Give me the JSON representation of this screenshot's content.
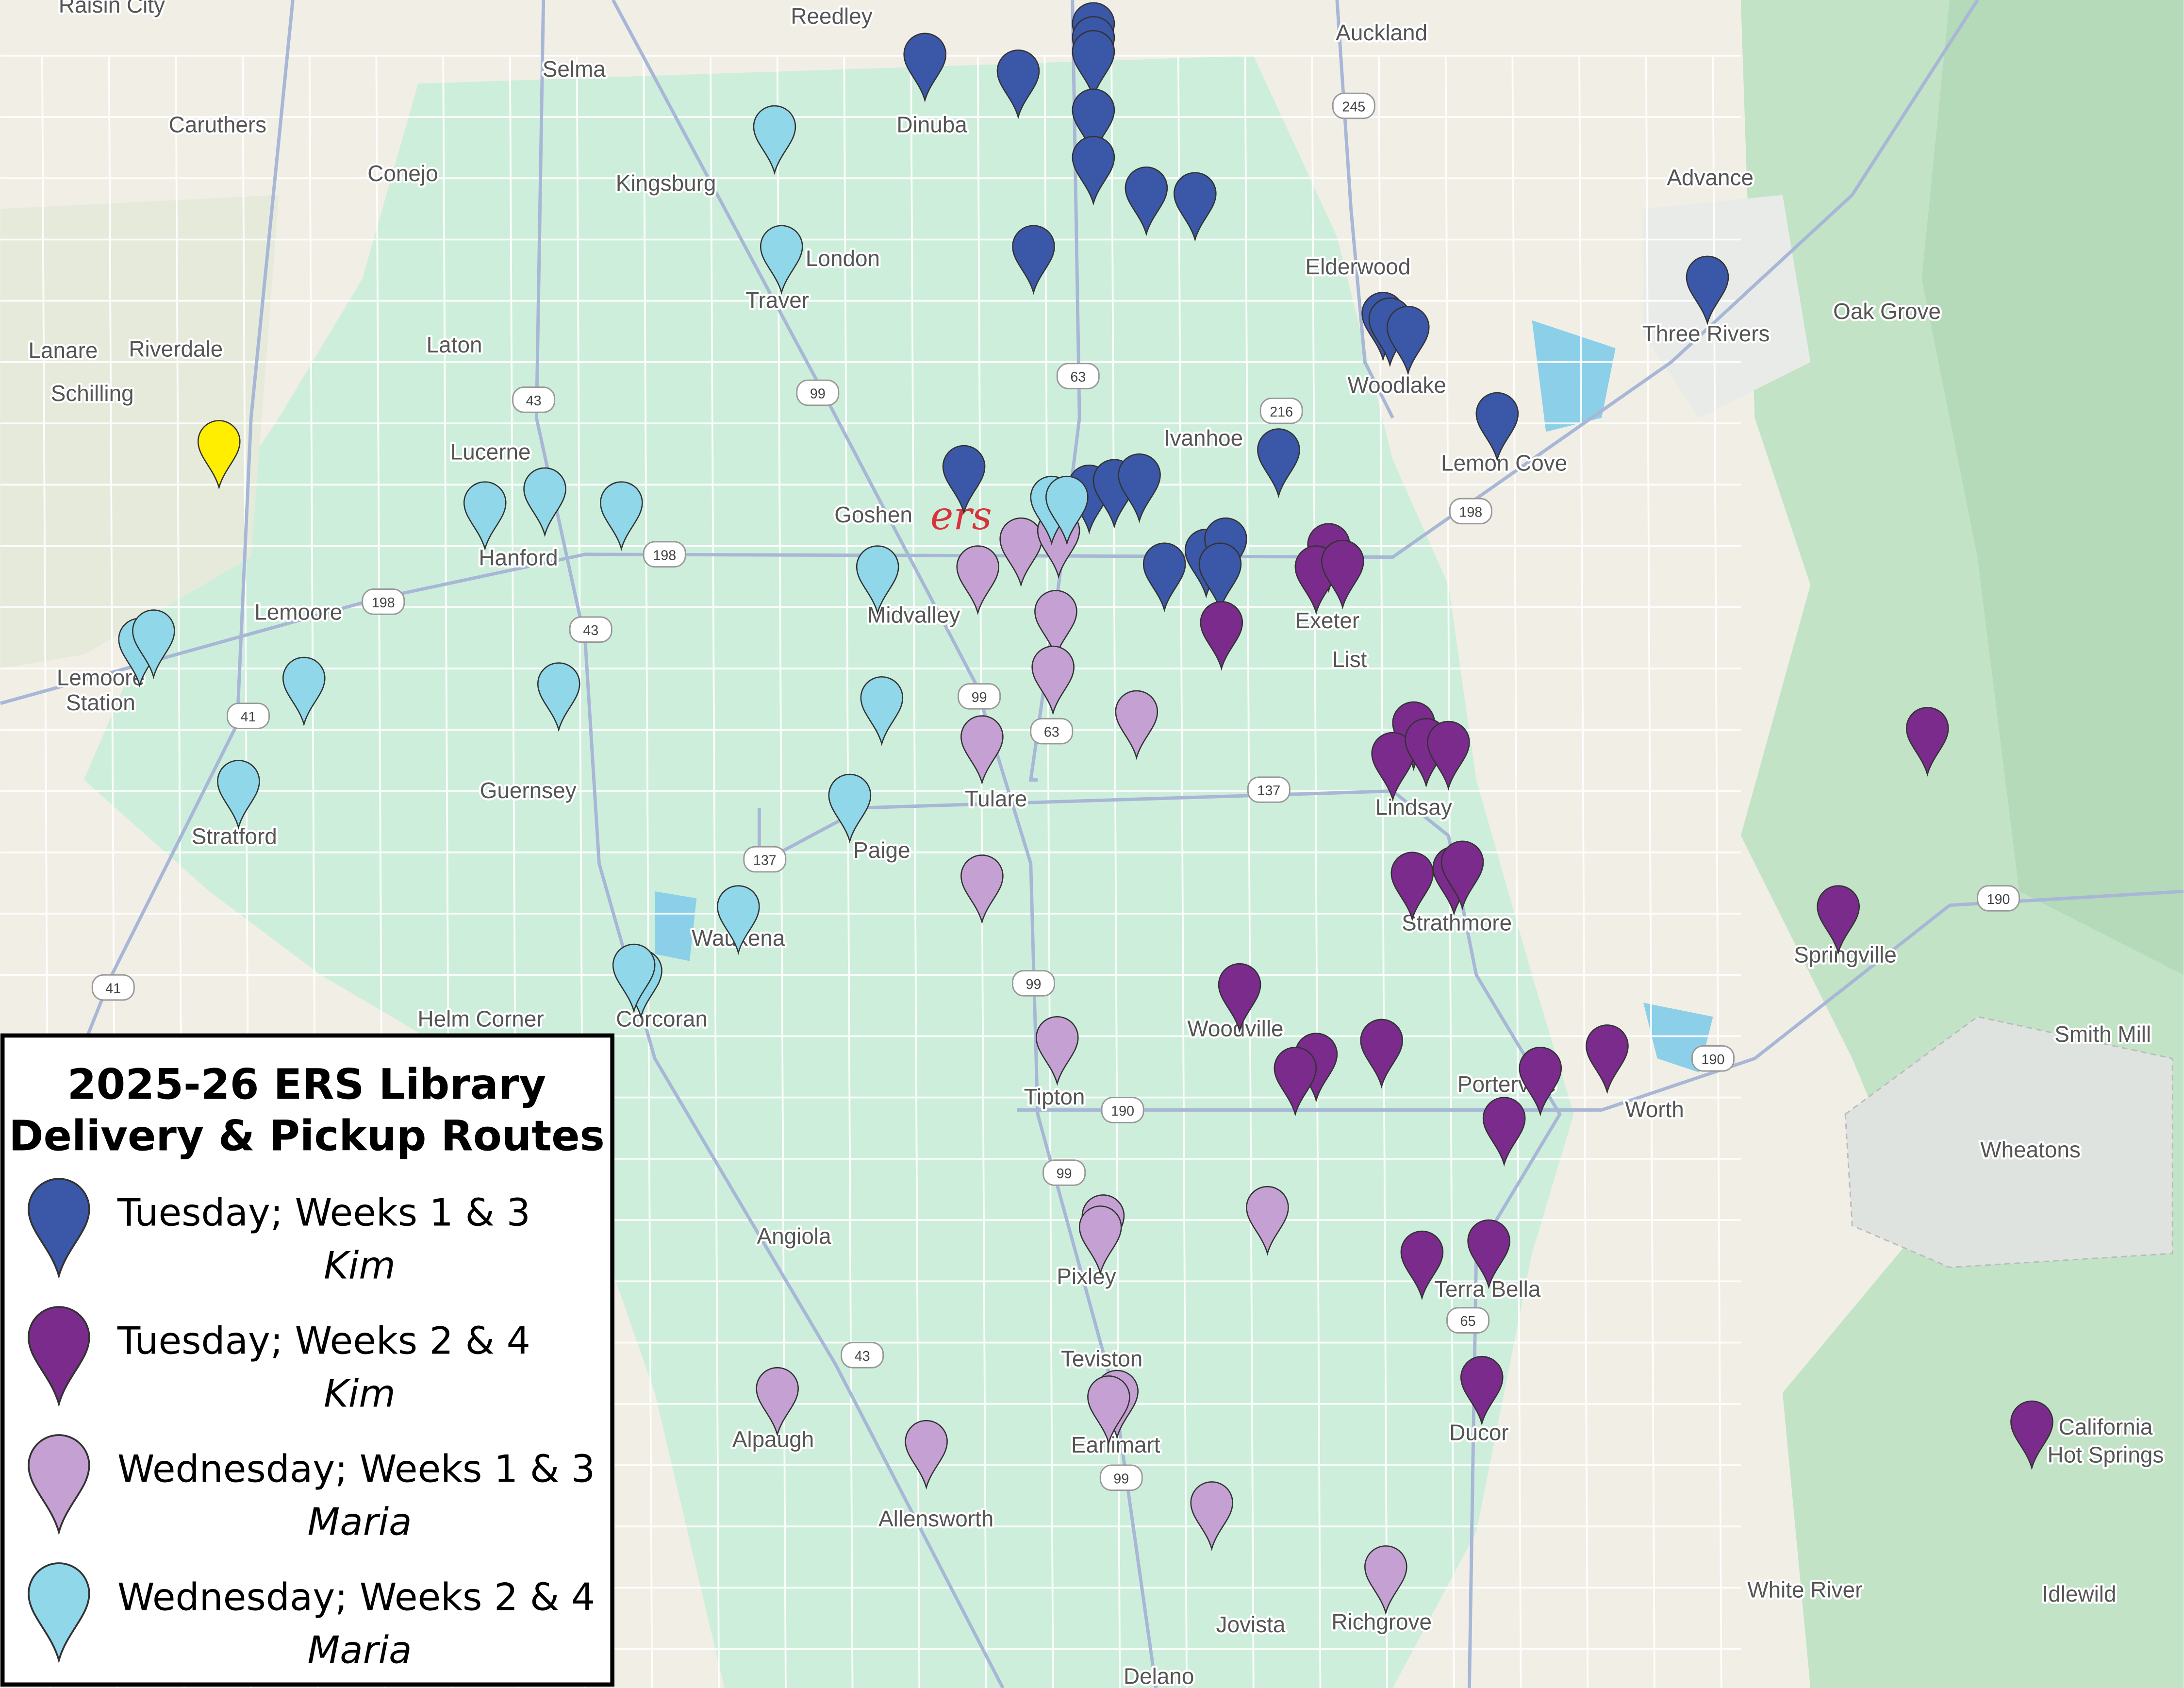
{
  "map": {
    "places": [
      "Raisin City",
      "Reedley",
      "Auckland",
      "Selma",
      "Caruthers",
      "Dinuba",
      "Conejo",
      "Kingsburg",
      "Advance",
      "London",
      "Elderwood",
      "Traver",
      "Oak Grove",
      "Three Rivers",
      "Lanare",
      "Riverdale",
      "Laton",
      "Woodlake",
      "Schilling",
      "Lucerne",
      "Ivanhoe",
      "Lemon Cove",
      "Goshen",
      "Hanford",
      "Lemoore",
      "Midvalley",
      "Exeter",
      "List",
      "Lemoore",
      "Station",
      "Guernsey",
      "Stratford",
      "Tulare",
      "Lindsay",
      "Paige",
      "Waukena",
      "Strathmore",
      "Springville",
      "Helm Corner",
      "Corcoran",
      "Woodville",
      "Smith Mill",
      "Tipton",
      "Porterville",
      "Worth",
      "Wheatons",
      "Angiola",
      "Pixley",
      "Terra Bella",
      "Teviston",
      "Alpaugh",
      "Earlimart",
      "Ducor",
      "California",
      "Hot Springs",
      "Allensworth",
      "White River",
      "Idlewild",
      "Jovista",
      "Richgrove",
      "Delano"
    ],
    "highways": [
      "245",
      "43",
      "63",
      "99",
      "216",
      "198",
      "198",
      "198",
      "43",
      "99",
      "63",
      "41",
      "137",
      "137",
      "41",
      "99",
      "190",
      "190",
      "190",
      "99",
      "65",
      "43",
      "99"
    ],
    "logo": "ers"
  },
  "legend": {
    "title": [
      "2025-26 ERS Library",
      "Delivery & Pickup Routes"
    ],
    "items": [
      {
        "label": "Tuesday; Weeks 1 & 3",
        "driver": "Kim",
        "color": "#3b57a8"
      },
      {
        "label": "Tuesday; Weeks 2 & 4",
        "driver": "Kim",
        "color": "#7a2b8c"
      },
      {
        "label": "Wednesday; Weeks 1 & 3",
        "driver": "Maria",
        "color": "#c5a1d3"
      },
      {
        "label": "Wednesday; Weeks 2 & 4",
        "driver": "Maria",
        "color": "#8fd7e9"
      }
    ]
  },
  "other_marker_color": "#ffee00"
}
